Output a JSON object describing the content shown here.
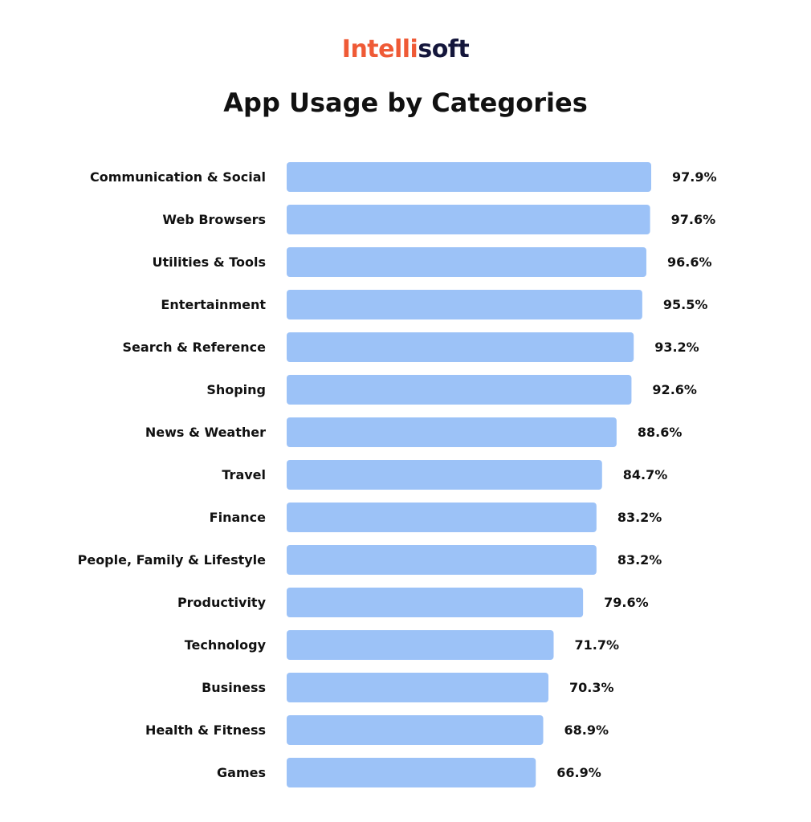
{
  "brand": {
    "logo_part_a": "Intelli",
    "logo_part_b": "soft",
    "color_a": "#ef5a36",
    "color_b": "#14163b"
  },
  "chart_data": {
    "type": "bar",
    "orientation": "horizontal",
    "title": "App Usage by Categories",
    "bar_color": "#9cc2f7",
    "value_suffix": "%",
    "categories": [
      "Communication & Social",
      "Web Browsers",
      "Utilities & Tools",
      "Entertainment",
      "Search & Reference",
      "Shoping",
      "News & Weather",
      "Travel",
      "Finance",
      "People, Family & Lifestyle",
      "Productivity",
      "Technology",
      "Business",
      "Health & Fitness",
      "Games"
    ],
    "values": [
      97.9,
      97.6,
      96.6,
      95.5,
      93.2,
      92.6,
      88.6,
      84.7,
      83.2,
      83.2,
      79.6,
      71.7,
      70.3,
      68.9,
      66.9
    ],
    "data_labels": [
      "97.9%",
      "97.6%",
      "96.6%",
      "95.5%",
      "93.2%",
      "92.6%",
      "88.6%",
      "84.7%",
      "83.2%",
      "83.2%",
      "79.6%",
      "71.7%",
      "70.3%",
      "68.9%",
      "66.9%"
    ],
    "grid": false,
    "legend": "none"
  }
}
